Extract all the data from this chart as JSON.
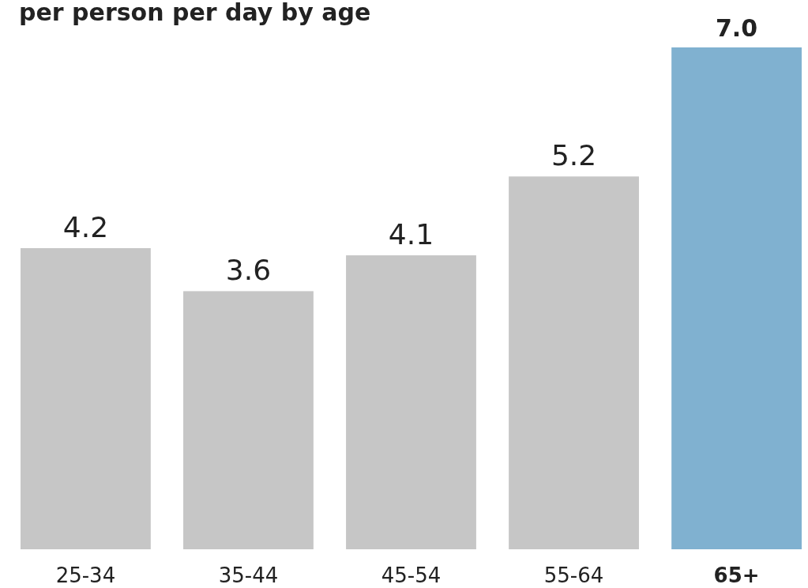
{
  "chart_data": {
    "type": "bar",
    "title": "per person per day by age",
    "categories": [
      "25-34",
      "35-44",
      "45-54",
      "55-64",
      "65+"
    ],
    "values": [
      4.2,
      3.6,
      4.1,
      5.2,
      7.0
    ],
    "colors": [
      "#c6c6c6",
      "#c6c6c6",
      "#c6c6c6",
      "#c6c6c6",
      "#80b1d0"
    ],
    "value_labels": [
      "4.2",
      "3.6",
      "4.1",
      "5.2",
      "7.0"
    ]
  }
}
